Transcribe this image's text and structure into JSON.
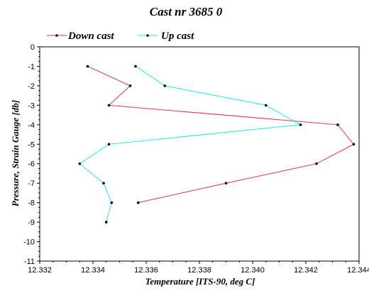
{
  "chart_data": {
    "type": "line",
    "title": "Cast nr 3685 0",
    "xlabel": "Temperature [ITS-90, deg C]",
    "ylabel": "Pressure, Strain Gauge [db]",
    "xlim": [
      12.332,
      12.344
    ],
    "ylim": [
      -11,
      0
    ],
    "x_ticks": [
      "12.332",
      "12.334",
      "12.336",
      "12.338",
      "12.340",
      "12.342",
      "12.344"
    ],
    "y_ticks": [
      "0",
      "-1",
      "-2",
      "-3",
      "-4",
      "-5",
      "-6",
      "-7",
      "-8",
      "-9",
      "-10",
      "-11"
    ],
    "legend_position": "top-left",
    "series": [
      {
        "name": "Down cast",
        "color": "#e8343c",
        "points": [
          {
            "x": 12.3338,
            "y": -1.0
          },
          {
            "x": 12.3354,
            "y": -2.0
          },
          {
            "x": 12.3346,
            "y": -3.0
          },
          {
            "x": 12.3432,
            "y": -4.0
          },
          {
            "x": 12.3438,
            "y": -5.0
          },
          {
            "x": 12.3424,
            "y": -6.0
          },
          {
            "x": 12.339,
            "y": -7.0
          },
          {
            "x": 12.3357,
            "y": -8.0
          }
        ]
      },
      {
        "name": "Up cast",
        "color": "#1ee8e8",
        "points": [
          {
            "x": 12.3356,
            "y": -1.0
          },
          {
            "x": 12.3367,
            "y": -2.0
          },
          {
            "x": 12.3405,
            "y": -3.0
          },
          {
            "x": 12.3418,
            "y": -4.0
          },
          {
            "x": 12.3346,
            "y": -5.0
          },
          {
            "x": 12.3335,
            "y": -6.0
          },
          {
            "x": 12.3344,
            "y": -7.0
          },
          {
            "x": 12.3347,
            "y": -8.0
          },
          {
            "x": 12.3345,
            "y": -9.0
          }
        ]
      }
    ]
  }
}
